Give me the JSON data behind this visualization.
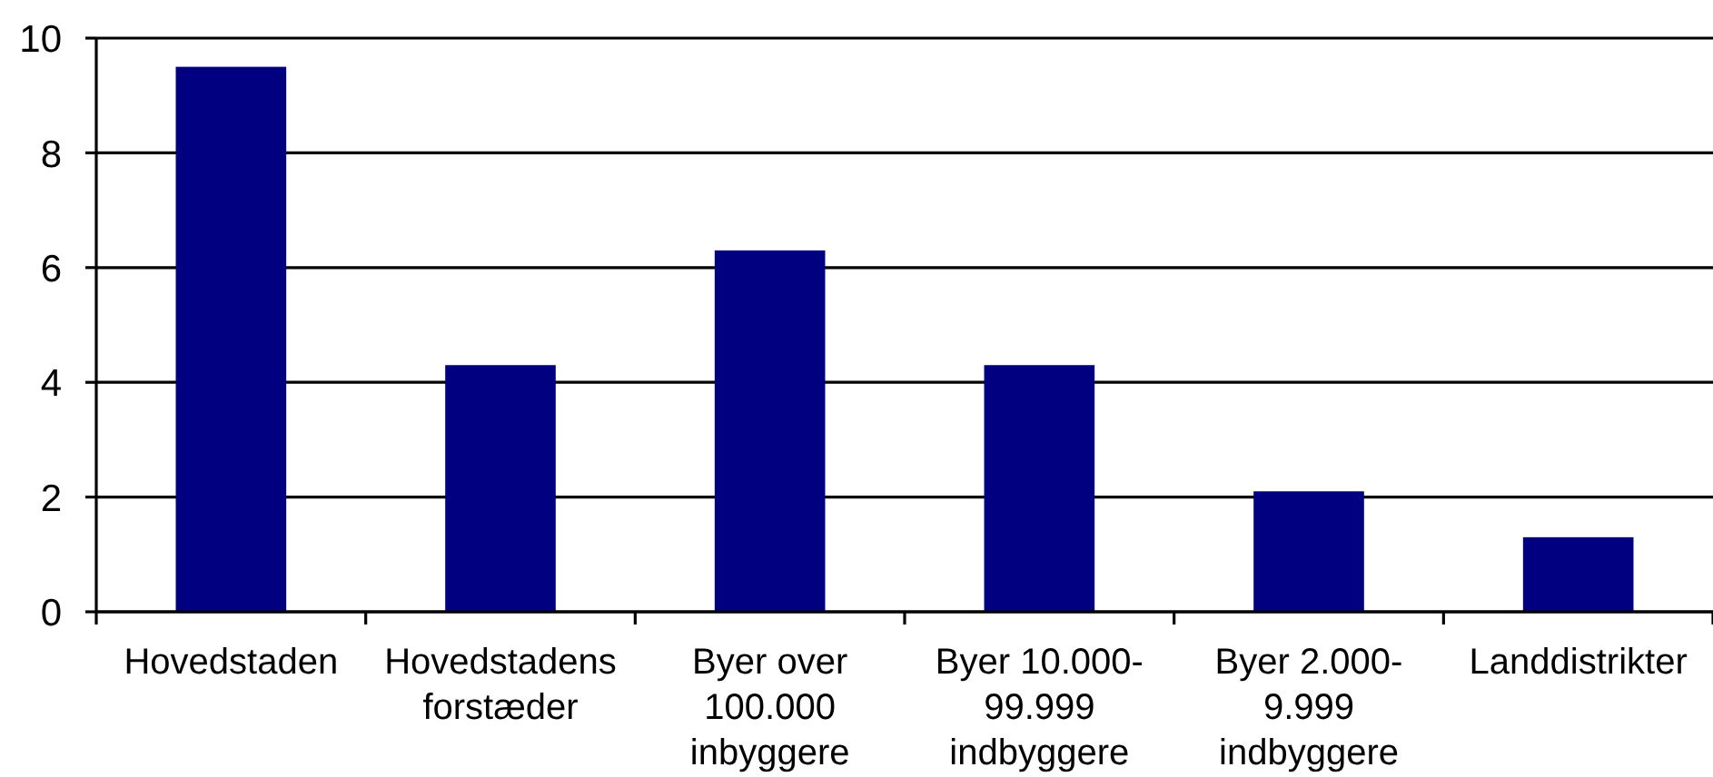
{
  "chart_data": {
    "type": "bar",
    "categories": [
      "Hovedstaden",
      "Hovedstadens forstæder",
      "Byer over 100.000 inbyggere",
      "Byer 10.000-99.999 indbyggere",
      "Byer 2.000-9.999 indbyggere",
      "Landdistrikter"
    ],
    "values": [
      9.5,
      4.3,
      6.3,
      4.3,
      2.1,
      1.3
    ],
    "color": "#000080",
    "ylim": [
      0,
      10
    ],
    "yticks": [
      0,
      2,
      4,
      6,
      8,
      10
    ],
    "grid": "y"
  }
}
